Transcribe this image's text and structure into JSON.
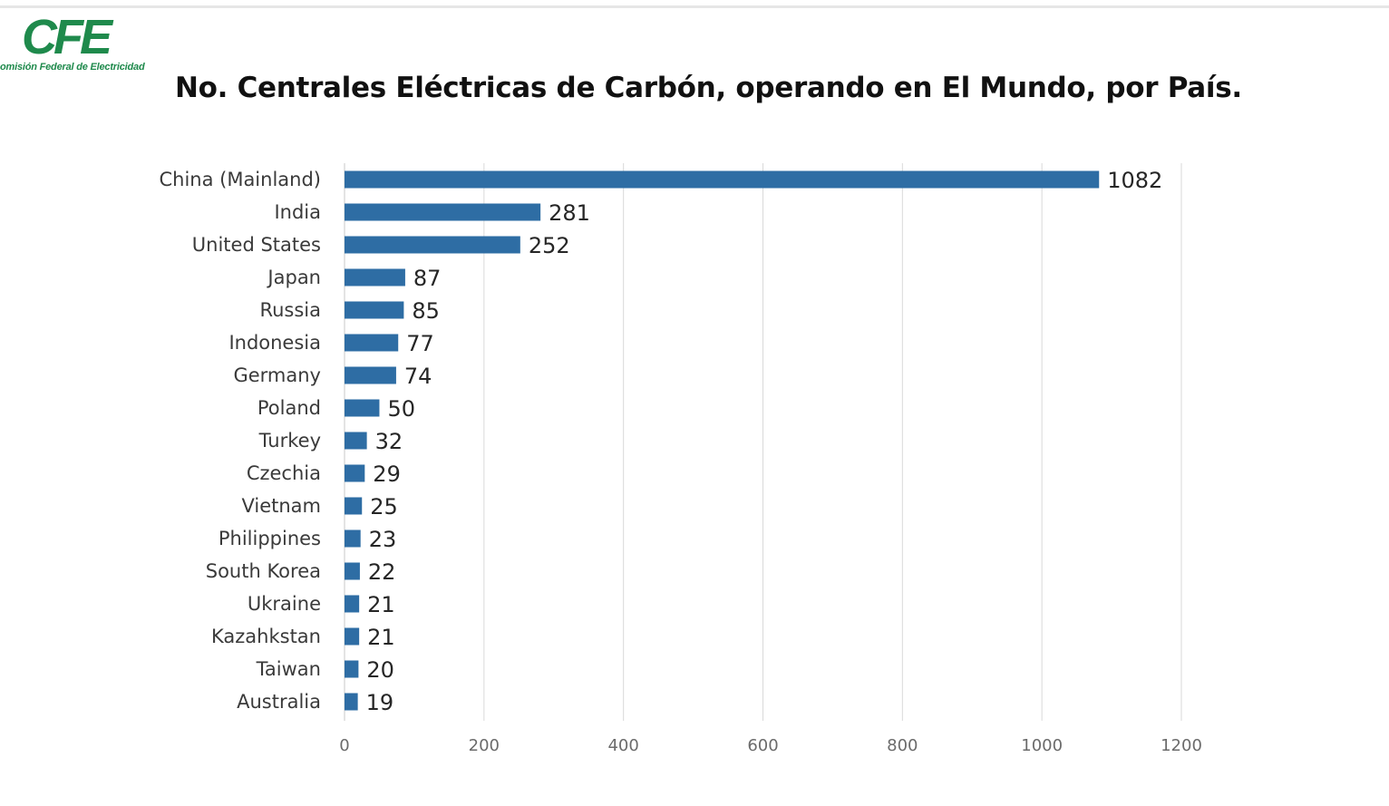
{
  "logo": {
    "mark": "CFE",
    "subtitle": "omisión Federal de Electricidad",
    "color": "#1f8a4c"
  },
  "chart_data": {
    "type": "bar",
    "orientation": "horizontal",
    "title": "No. Centrales Eléctricas de Carbón, operando en El Mundo, por País.",
    "xlabel": "",
    "ylabel": "",
    "categories": [
      "China (Mainland)",
      "India",
      "United States",
      "Japan",
      "Russia",
      "Indonesia",
      "Germany",
      "Poland",
      "Turkey",
      "Czechia",
      "Vietnam",
      "Philippines",
      "South Korea",
      "Ukraine",
      "Kazahkstan",
      "Taiwan",
      "Australia"
    ],
    "values": [
      1082,
      281,
      252,
      87,
      85,
      77,
      74,
      50,
      32,
      29,
      25,
      23,
      22,
      21,
      21,
      20,
      19
    ],
    "xlim": [
      0,
      1200
    ],
    "xticks": [
      0,
      200,
      400,
      600,
      800,
      1000,
      1200
    ],
    "grid": true,
    "legend": "none",
    "bar_color": "#2e6da4",
    "grid_color": "#d9d9d9"
  }
}
